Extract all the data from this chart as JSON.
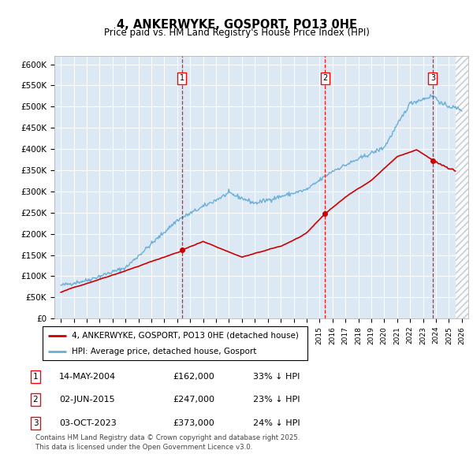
{
  "title": "4, ANKERWYKE, GOSPORT, PO13 0HE",
  "subtitle": "Price paid vs. HM Land Registry's House Price Index (HPI)",
  "xlim": [
    1994.5,
    2026.5
  ],
  "ylim": [
    0,
    620000
  ],
  "yticks": [
    0,
    50000,
    100000,
    150000,
    200000,
    250000,
    300000,
    350000,
    400000,
    450000,
    500000,
    550000,
    600000
  ],
  "ytick_labels": [
    "£0",
    "£50K",
    "£100K",
    "£150K",
    "£200K",
    "£250K",
    "£300K",
    "£350K",
    "£400K",
    "£450K",
    "£500K",
    "£550K",
    "£600K"
  ],
  "plot_bg_color": "#dce9f5",
  "fig_bg_color": "#ffffff",
  "sale_dates_num": [
    2004.37,
    2015.42,
    2023.75
  ],
  "sale_prices": [
    162000,
    247000,
    373000
  ],
  "sale_labels": [
    "1",
    "2",
    "3"
  ],
  "sale_info": [
    {
      "label": "1",
      "date": "14-MAY-2004",
      "price": "£162,000",
      "pct": "33%",
      "dir": "↓",
      "vs": "HPI"
    },
    {
      "label": "2",
      "date": "02-JUN-2015",
      "price": "£247,000",
      "pct": "23%",
      "dir": "↓",
      "vs": "HPI"
    },
    {
      "label": "3",
      "date": "03-OCT-2023",
      "price": "£373,000",
      "pct": "24%",
      "dir": "↓",
      "vs": "HPI"
    }
  ],
  "legend_entries": [
    {
      "label": "4, ANKERWYKE, GOSPORT, PO13 0HE (detached house)",
      "color": "#cc0000"
    },
    {
      "label": "HPI: Average price, detached house, Gosport",
      "color": "#6baed6"
    }
  ],
  "footer": "Contains HM Land Registry data © Crown copyright and database right 2025.\nThis data is licensed under the Open Government Licence v3.0.",
  "hpi_color": "#6baed6",
  "price_color": "#cc0000"
}
